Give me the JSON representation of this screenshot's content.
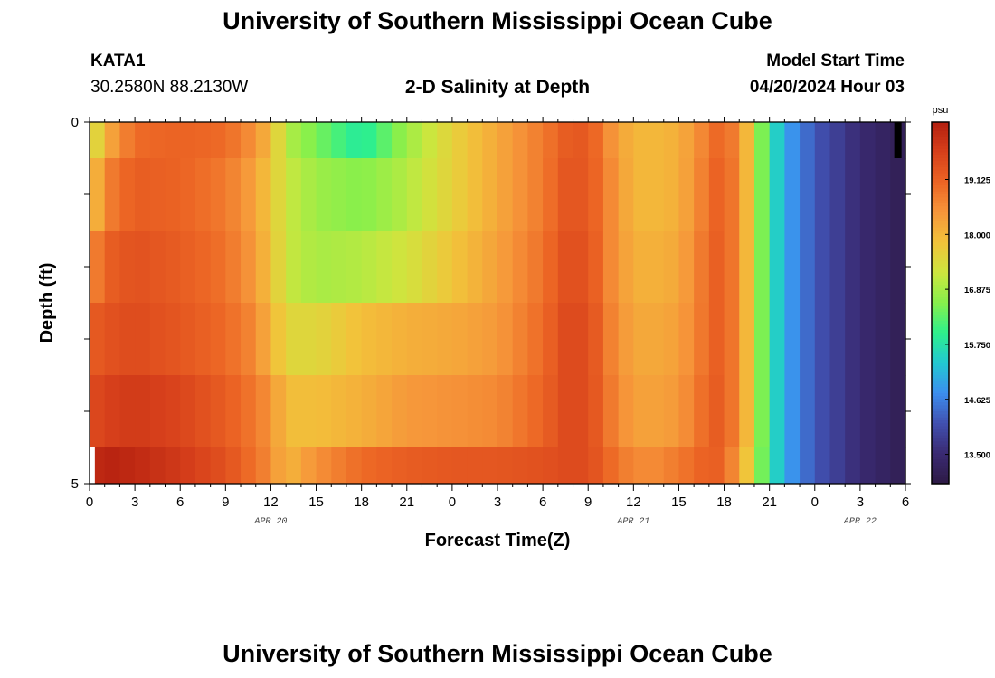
{
  "header": {
    "title": "University of Southern Mississippi Ocean Cube",
    "station_id": "KATA1",
    "station_coords": "30.2580N  88.2130W",
    "plot_title": "2-D Salinity at Depth",
    "model_start_label": "Model Start Time",
    "model_start_value": "04/20/2024 Hour 03"
  },
  "footer": {
    "title": "University of Southern Mississippi Ocean Cube"
  },
  "chart_data": {
    "type": "heatmap",
    "title": "2-D Salinity at Depth",
    "xlabel": "Forecast Time(Z)",
    "ylabel": "Depth (ft)",
    "x_tick_labels": [
      "0",
      "3",
      "6",
      "9",
      "12",
      "15",
      "18",
      "21",
      "0",
      "3",
      "6",
      "9",
      "12",
      "15",
      "18",
      "21",
      "0",
      "3",
      "6"
    ],
    "x_range_hours": [
      0,
      54
    ],
    "date_labels": [
      {
        "text": "APR 20",
        "hour": 12
      },
      {
        "text": "APR 21",
        "hour": 36
      },
      {
        "text": "APR 22",
        "hour": 51
      }
    ],
    "y_tick_labels": [
      "0",
      "5"
    ],
    "ylim": [
      0,
      5
    ],
    "colorbar": {
      "unit": "psu",
      "min": 12.9,
      "max": 20.3,
      "tick_values": [
        13.5,
        14.625,
        15.75,
        16.875,
        18.0,
        19.125
      ],
      "tick_labels": [
        "13.500",
        "14.625",
        "15.750",
        "16.875",
        "18.000",
        "19.125"
      ],
      "colors": [
        "#2d1a45",
        "#3a2a72",
        "#4150b0",
        "#3c8eee",
        "#22c8d2",
        "#2ef08c",
        "#86f04c",
        "#cde63e",
        "#f2c33a",
        "#f6963a",
        "#ec6524",
        "#d7401b",
        "#b31f0f"
      ]
    },
    "depth_layers_ft": [
      [
        0,
        0.5
      ],
      [
        0.5,
        1.5
      ],
      [
        1.5,
        2.5
      ],
      [
        2.5,
        3.5
      ],
      [
        3.5,
        4.5
      ],
      [
        4.5,
        5.0
      ]
    ],
    "profile_hours": [
      0,
      1.5,
      3,
      6,
      9,
      10.5,
      12,
      13,
      15,
      18,
      21,
      24,
      27,
      30,
      31.5,
      33,
      34.5,
      36,
      37.5,
      39,
      41,
      42,
      43.5,
      45,
      46.5,
      48,
      51,
      54
    ],
    "salinity_by_layer": [
      [
        17.2,
        18.3,
        19.0,
        19.1,
        19.0,
        18.6,
        18.0,
        17.0,
        16.5,
        15.8,
        16.8,
        17.6,
        18.2,
        18.8,
        19.2,
        19.3,
        18.5,
        18.0,
        18.0,
        18.1,
        18.8,
        19.2,
        18.0,
        15.8,
        14.8,
        14.2,
        13.5,
        13.1
      ],
      [
        17.8,
        18.8,
        19.2,
        19.1,
        18.8,
        18.4,
        17.8,
        17.2,
        16.8,
        16.6,
        17.0,
        17.6,
        18.2,
        18.8,
        19.3,
        19.3,
        18.6,
        18.0,
        18.0,
        18.1,
        18.9,
        19.3,
        18.0,
        15.8,
        14.8,
        14.2,
        13.5,
        13.1
      ],
      [
        18.6,
        19.2,
        19.4,
        19.2,
        18.9,
        18.5,
        17.9,
        17.2,
        16.9,
        17.0,
        17.3,
        17.8,
        18.3,
        18.9,
        19.4,
        19.4,
        18.6,
        18.1,
        18.1,
        18.2,
        19.0,
        19.3,
        18.0,
        15.8,
        14.8,
        14.2,
        13.5,
        13.1
      ],
      [
        19.2,
        19.4,
        19.5,
        19.3,
        19.0,
        18.7,
        18.1,
        17.5,
        17.5,
        17.9,
        18.1,
        18.2,
        18.4,
        19.0,
        19.5,
        19.5,
        18.7,
        18.2,
        18.2,
        18.3,
        19.0,
        19.3,
        18.0,
        15.8,
        14.8,
        14.2,
        13.5,
        13.1
      ],
      [
        19.5,
        19.7,
        19.8,
        19.6,
        19.2,
        18.9,
        18.5,
        17.9,
        17.9,
        18.1,
        18.4,
        18.5,
        18.6,
        19.1,
        19.5,
        19.5,
        18.8,
        18.3,
        18.3,
        18.4,
        19.1,
        19.3,
        18.0,
        15.8,
        14.8,
        14.2,
        13.5,
        13.1
      ],
      [
        20.1,
        20.2,
        20.1,
        19.8,
        19.4,
        19.0,
        18.6,
        18.0,
        18.5,
        19.0,
        19.2,
        19.3,
        19.3,
        19.4,
        19.5,
        19.5,
        19.0,
        18.6,
        18.6,
        18.8,
        19.2,
        19.1,
        17.8,
        15.8,
        14.8,
        14.2,
        13.5,
        13.1
      ]
    ],
    "missing_data_marker": {
      "hour": 53.5,
      "depth_ft": [
        0,
        0.5
      ]
    }
  }
}
